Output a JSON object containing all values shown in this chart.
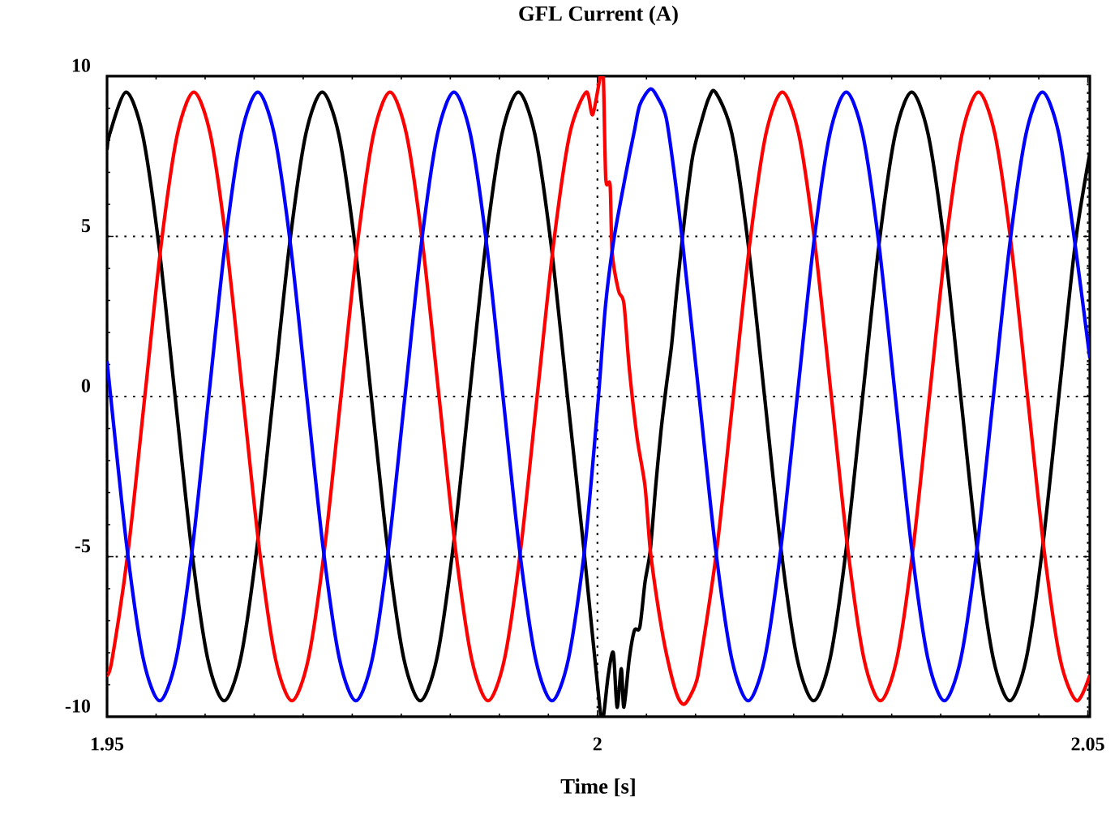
{
  "chart_data": {
    "type": "line",
    "title": "GFL Current (A)",
    "xlabel": "Time [s]",
    "xlim": [
      1.95,
      2.0502
    ],
    "ylim": [
      -10,
      10
    ],
    "xticks": [
      1.95,
      2,
      2.05
    ],
    "yticks": [
      -10,
      -5,
      0,
      5,
      10
    ],
    "grid": true,
    "marker": "none",
    "line_style": "solid",
    "series": [
      {
        "color": "#000000",
        "x": [
          1.95,
          1.95027,
          1.95194,
          1.95361,
          1.95527,
          1.95694,
          1.95861,
          1.96027,
          1.96194,
          1.96361,
          1.96527,
          1.96694,
          1.96861,
          1.97027,
          1.97194,
          1.97361,
          1.97527,
          1.97694,
          1.97861,
          1.98027,
          1.98194,
          1.98361,
          1.98527,
          1.98694,
          1.98861,
          1.99027,
          1.99194,
          1.99361,
          1.99527,
          1.99694,
          1.99861,
          2.00027,
          2.0006,
          2.0011,
          2.00162,
          2.002,
          2.00243,
          2.0027,
          2.00324,
          2.00377,
          2.00432,
          2.00485,
          2.00539,
          2.00594,
          2.00647,
          2.00701,
          2.00756,
          2.00809,
          2.0089,
          2.00971,
          2.01052,
          2.01133,
          2.01204,
          2.01371,
          2.01537,
          2.01704,
          2.01871,
          2.02037,
          2.02204,
          2.02371,
          2.02537,
          2.02704,
          2.02871,
          2.03037,
          2.03204,
          2.03371,
          2.03537,
          2.03704,
          2.03871,
          2.04037,
          2.04204,
          2.04371,
          2.04537,
          2.04704,
          2.04871,
          2.0502
        ],
        "values": [
          7.7,
          8.2,
          9.5,
          8.2,
          4.75,
          0,
          -4.75,
          -8.2,
          -9.5,
          -8.2,
          -4.75,
          0,
          4.75,
          8.2,
          9.5,
          8.2,
          4.75,
          0,
          -4.75,
          -8.2,
          -9.5,
          -8.2,
          -4.75,
          0,
          4.75,
          8.2,
          9.5,
          8.2,
          4.75,
          0,
          -4.75,
          -9.8,
          -10,
          -8.7,
          -8.0,
          -9.7,
          -8.5,
          -9.7,
          -8.2,
          -7.3,
          -7.2,
          -5.8,
          -4.8,
          -2.8,
          -1.1,
          0.3,
          1.6,
          3.3,
          5.6,
          7.5,
          8.5,
          9.3,
          9.5,
          8.2,
          4.75,
          0,
          -4.75,
          -8.2,
          -9.5,
          -8.2,
          -4.75,
          0,
          4.75,
          8.2,
          9.5,
          8.2,
          4.75,
          0,
          -4.75,
          -8.2,
          -9.5,
          -8.2,
          -4.75,
          0,
          4.75,
          7.6
        ]
      },
      {
        "color": "#ff0000",
        "x": [
          1.95,
          1.95052,
          1.95218,
          1.95385,
          1.95552,
          1.95718,
          1.95885,
          1.96052,
          1.96218,
          1.96385,
          1.96552,
          1.96718,
          1.96885,
          1.97052,
          1.97218,
          1.97385,
          1.97552,
          1.97718,
          1.97885,
          1.98052,
          1.98218,
          1.98385,
          1.98552,
          1.98718,
          1.98885,
          1.99052,
          1.99218,
          1.99385,
          1.99552,
          1.99718,
          1.99885,
          1.99951,
          2.0003,
          2.0006,
          2.00085,
          2.00129,
          2.0015,
          2.00215,
          2.0027,
          2.00324,
          2.00405,
          2.00485,
          2.00539,
          2.0062,
          2.00701,
          2.00809,
          2.0089,
          2.00998,
          2.01052,
          2.01218,
          2.01385,
          2.01552,
          2.01718,
          2.01885,
          2.02052,
          2.02218,
          2.02385,
          2.02552,
          2.02718,
          2.02885,
          2.03052,
          2.03218,
          2.03385,
          2.03552,
          2.03718,
          2.03885,
          2.04052,
          2.04218,
          2.04385,
          2.04552,
          2.04718,
          2.04885,
          2.0502
        ],
        "values": [
          -8.7,
          -8.2,
          -4.75,
          0,
          4.75,
          8.2,
          9.5,
          8.2,
          4.75,
          0,
          -4.75,
          -8.2,
          -9.5,
          -8.2,
          -4.75,
          0,
          4.75,
          8.2,
          9.5,
          8.2,
          4.75,
          0,
          -4.75,
          -8.2,
          -9.5,
          -8.2,
          -4.75,
          0,
          4.75,
          8.2,
          9.5,
          8.8,
          10,
          10,
          6.8,
          6.6,
          4.5,
          3.3,
          2.9,
          0.9,
          -1.3,
          -2.8,
          -4.8,
          -6.6,
          -8.0,
          -9.3,
          -9.6,
          -9.0,
          -8.2,
          -4.75,
          0,
          4.75,
          8.2,
          9.5,
          8.2,
          4.75,
          0,
          -4.75,
          -8.2,
          -9.5,
          -8.2,
          -4.75,
          0,
          4.75,
          8.2,
          9.5,
          8.2,
          4.75,
          0,
          -4.75,
          -8.2,
          -9.5,
          -8.7
        ]
      },
      {
        "color": "#0000ff",
        "x": [
          1.95,
          1.95037,
          1.95204,
          1.9537,
          1.95537,
          1.95704,
          1.9587,
          1.96037,
          1.96204,
          1.9637,
          1.96537,
          1.96704,
          1.9687,
          1.97037,
          1.97204,
          1.9737,
          1.97537,
          1.97704,
          1.9787,
          1.98037,
          1.98204,
          1.9837,
          1.98537,
          1.98704,
          1.9887,
          1.99037,
          1.99204,
          1.9937,
          1.99537,
          1.99704,
          1.9987,
          2.0,
          2.00081,
          2.00162,
          2.00243,
          2.00324,
          2.00377,
          2.00432,
          2.00539,
          2.0062,
          2.00701,
          2.00782,
          2.0087,
          2.01037,
          2.01204,
          2.0137,
          2.01537,
          2.01704,
          2.0187,
          2.02037,
          2.02204,
          2.0237,
          2.02537,
          2.02704,
          2.0287,
          2.03037,
          2.03204,
          2.0337,
          2.03537,
          2.03704,
          2.0387,
          2.04037,
          2.04204,
          2.0437,
          2.04537,
          2.04704,
          2.0487,
          2.0502
        ],
        "values": [
          1.1,
          0,
          -4.75,
          -8.2,
          -9.5,
          -8.2,
          -4.75,
          0,
          4.75,
          8.2,
          9.5,
          8.2,
          4.75,
          0,
          -4.75,
          -8.2,
          -9.5,
          -8.2,
          -4.75,
          0,
          4.75,
          8.2,
          9.5,
          8.2,
          4.75,
          0,
          -4.75,
          -8.2,
          -9.5,
          -8.2,
          -4.75,
          -0.4,
          2.8,
          4.8,
          6.2,
          7.5,
          8.3,
          9.1,
          9.6,
          9.3,
          8.7,
          7.0,
          4.75,
          0,
          -4.75,
          -8.2,
          -9.5,
          -8.2,
          -4.75,
          0,
          4.75,
          8.2,
          9.5,
          8.2,
          4.75,
          0,
          -4.75,
          -8.2,
          -9.5,
          -8.2,
          -4.75,
          0,
          4.75,
          8.2,
          9.5,
          8.2,
          4.75,
          1.2
        ]
      }
    ]
  }
}
